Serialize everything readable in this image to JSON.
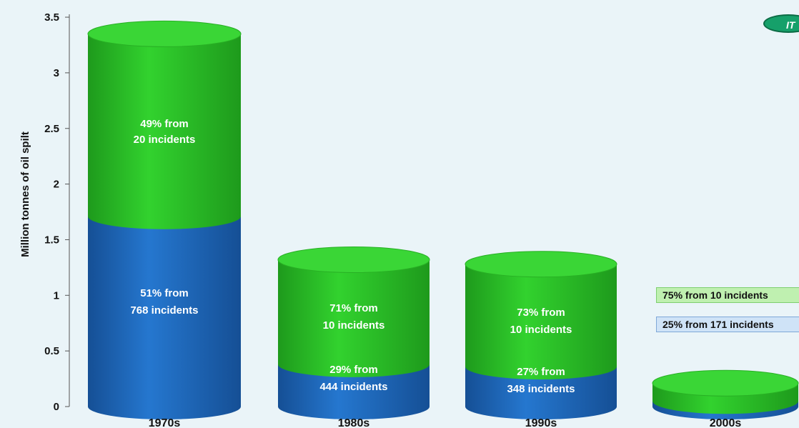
{
  "chart_data": {
    "type": "bar",
    "stacked": true,
    "style": "3d-cylinder",
    "categories": [
      "1970s",
      "1980s",
      "1990s",
      "2000s"
    ],
    "series": [
      {
        "color": "#1f6fc4",
        "values": [
          1.71,
          0.38,
          0.36,
          0.05
        ],
        "labels": [
          "51% from\n768 incidents",
          "29% from\n444 incidents",
          "27% from\n348 incidents",
          "25% from 171 incidents"
        ]
      },
      {
        "color": "#2ec82a",
        "values": [
          1.64,
          0.94,
          0.92,
          0.16
        ],
        "labels": [
          "49% from\n20 incidents",
          "71% from\n10 incidents",
          "73% from\n10 incidents",
          "75% from 10 incidents"
        ]
      }
    ],
    "ylabel": "Million tonnes of oil spilt",
    "xlabel": "",
    "ylim": [
      0,
      3.5
    ],
    "yticks": [
      "0",
      "0.5",
      "1",
      "1.5",
      "2",
      "2.5",
      "3",
      "3.5"
    ],
    "grid": false,
    "legend": "none"
  },
  "logo_text": "IT"
}
